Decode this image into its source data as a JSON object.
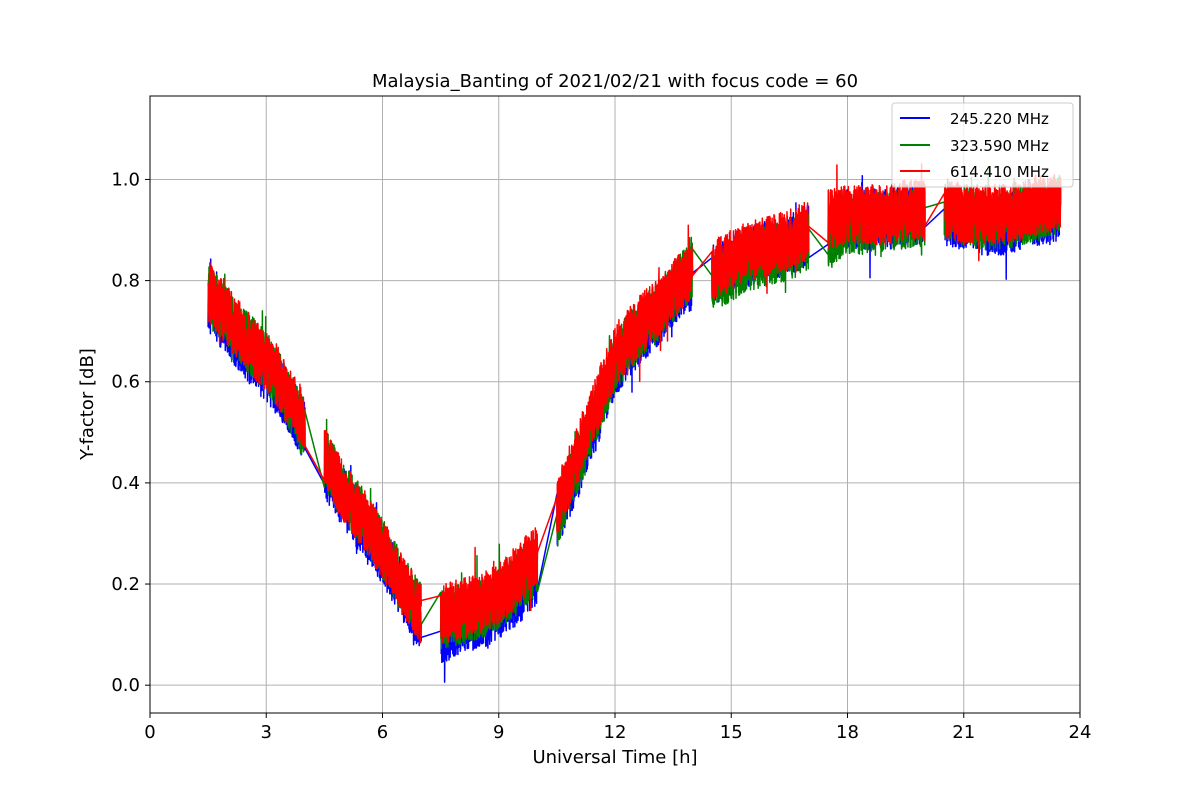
{
  "chart_data": {
    "type": "line",
    "title": "Malaysia_Banting of 2021/02/21 with focus code = 60",
    "xlabel": "Universal Time [h]",
    "ylabel": "Y-factor [dB]",
    "xlim": [
      0,
      24
    ],
    "ylim": [
      -0.055,
      1.165
    ],
    "xticks": [
      0,
      3,
      6,
      9,
      12,
      15,
      18,
      21,
      24
    ],
    "yticks": [
      "0.0",
      "0.2",
      "0.4",
      "0.6",
      "0.8",
      "1.0"
    ],
    "grid": true,
    "legend_position": "top-right",
    "segments": [
      {
        "start": 1.5,
        "end": 4.0
      },
      {
        "start": 4.5,
        "end": 7.0
      },
      {
        "start": 7.5,
        "end": 10.0
      },
      {
        "start": 10.5,
        "end": 14.0
      },
      {
        "start": 14.5,
        "end": 17.0
      },
      {
        "start": 17.5,
        "end": 20.0
      },
      {
        "start": 20.5,
        "end": 23.5
      }
    ],
    "noise_amplitude": 0.06,
    "series": [
      {
        "name": "245.220 MHz",
        "color": "#0000ff",
        "x": [
          1.5,
          2.0,
          2.5,
          3.0,
          3.5,
          4.0,
          4.5,
          5.0,
          5.5,
          6.0,
          6.5,
          7.0,
          7.5,
          8.0,
          8.5,
          9.0,
          9.5,
          10.0,
          10.5,
          11.0,
          11.5,
          12.0,
          12.5,
          13.0,
          13.5,
          14.0,
          14.5,
          15.0,
          15.5,
          16.0,
          16.5,
          17.0,
          17.5,
          18.0,
          18.5,
          19.0,
          19.5,
          20.0,
          20.5,
          21.0,
          21.5,
          22.0,
          22.5,
          23.0,
          23.5
        ],
        "y": [
          0.76,
          0.71,
          0.66,
          0.62,
          0.57,
          0.5,
          0.43,
          0.37,
          0.31,
          0.26,
          0.19,
          0.12,
          0.1,
          0.12,
          0.13,
          0.15,
          0.18,
          0.22,
          0.33,
          0.42,
          0.52,
          0.63,
          0.68,
          0.72,
          0.77,
          0.8,
          0.81,
          0.83,
          0.85,
          0.86,
          0.87,
          0.89,
          0.9,
          0.92,
          0.92,
          0.92,
          0.93,
          0.93,
          0.93,
          0.92,
          0.91,
          0.91,
          0.92,
          0.93,
          0.94
        ]
      },
      {
        "name": "323.590 MHz",
        "color": "#008000",
        "x": [
          1.5,
          2.0,
          2.5,
          3.0,
          3.5,
          4.0,
          4.5,
          5.0,
          5.5,
          6.0,
          6.5,
          7.0,
          7.5,
          8.0,
          8.5,
          9.0,
          9.5,
          10.0,
          10.5,
          11.0,
          11.5,
          12.0,
          12.5,
          13.0,
          13.5,
          14.0,
          14.5,
          15.0,
          15.5,
          16.0,
          16.5,
          17.0,
          17.5,
          18.0,
          18.5,
          19.0,
          19.5,
          20.0,
          20.5,
          21.0,
          21.5,
          22.0,
          22.5,
          23.0,
          23.5
        ],
        "y": [
          0.77,
          0.73,
          0.68,
          0.64,
          0.58,
          0.5,
          0.45,
          0.38,
          0.33,
          0.27,
          0.2,
          0.14,
          0.13,
          0.14,
          0.15,
          0.17,
          0.2,
          0.24,
          0.33,
          0.43,
          0.53,
          0.64,
          0.69,
          0.73,
          0.78,
          0.82,
          0.79,
          0.82,
          0.84,
          0.85,
          0.86,
          0.88,
          0.88,
          0.91,
          0.91,
          0.92,
          0.92,
          0.93,
          0.94,
          0.93,
          0.92,
          0.92,
          0.93,
          0.94,
          0.95
        ]
      },
      {
        "name": "614.410 MHz",
        "color": "#ff0000",
        "x": [
          1.5,
          2.0,
          2.5,
          3.0,
          3.5,
          4.0,
          4.5,
          5.0,
          5.5,
          6.0,
          6.5,
          7.0,
          7.5,
          8.0,
          8.5,
          9.0,
          9.5,
          10.0,
          10.5,
          11.0,
          11.5,
          12.0,
          12.5,
          13.0,
          13.5,
          14.0,
          14.5,
          15.0,
          15.5,
          16.0,
          16.5,
          17.0,
          17.5,
          18.0,
          18.5,
          19.0,
          19.5,
          20.0,
          20.5,
          21.0,
          21.5,
          22.0,
          22.5,
          23.0,
          23.5
        ],
        "y": [
          0.78,
          0.73,
          0.68,
          0.64,
          0.58,
          0.52,
          0.45,
          0.38,
          0.33,
          0.27,
          0.2,
          0.14,
          0.14,
          0.15,
          0.16,
          0.18,
          0.22,
          0.26,
          0.35,
          0.45,
          0.55,
          0.65,
          0.7,
          0.74,
          0.78,
          0.82,
          0.82,
          0.84,
          0.86,
          0.87,
          0.88,
          0.9,
          0.92,
          0.93,
          0.93,
          0.93,
          0.94,
          0.94,
          0.94,
          0.93,
          0.93,
          0.93,
          0.94,
          0.95,
          0.96
        ]
      }
    ]
  }
}
